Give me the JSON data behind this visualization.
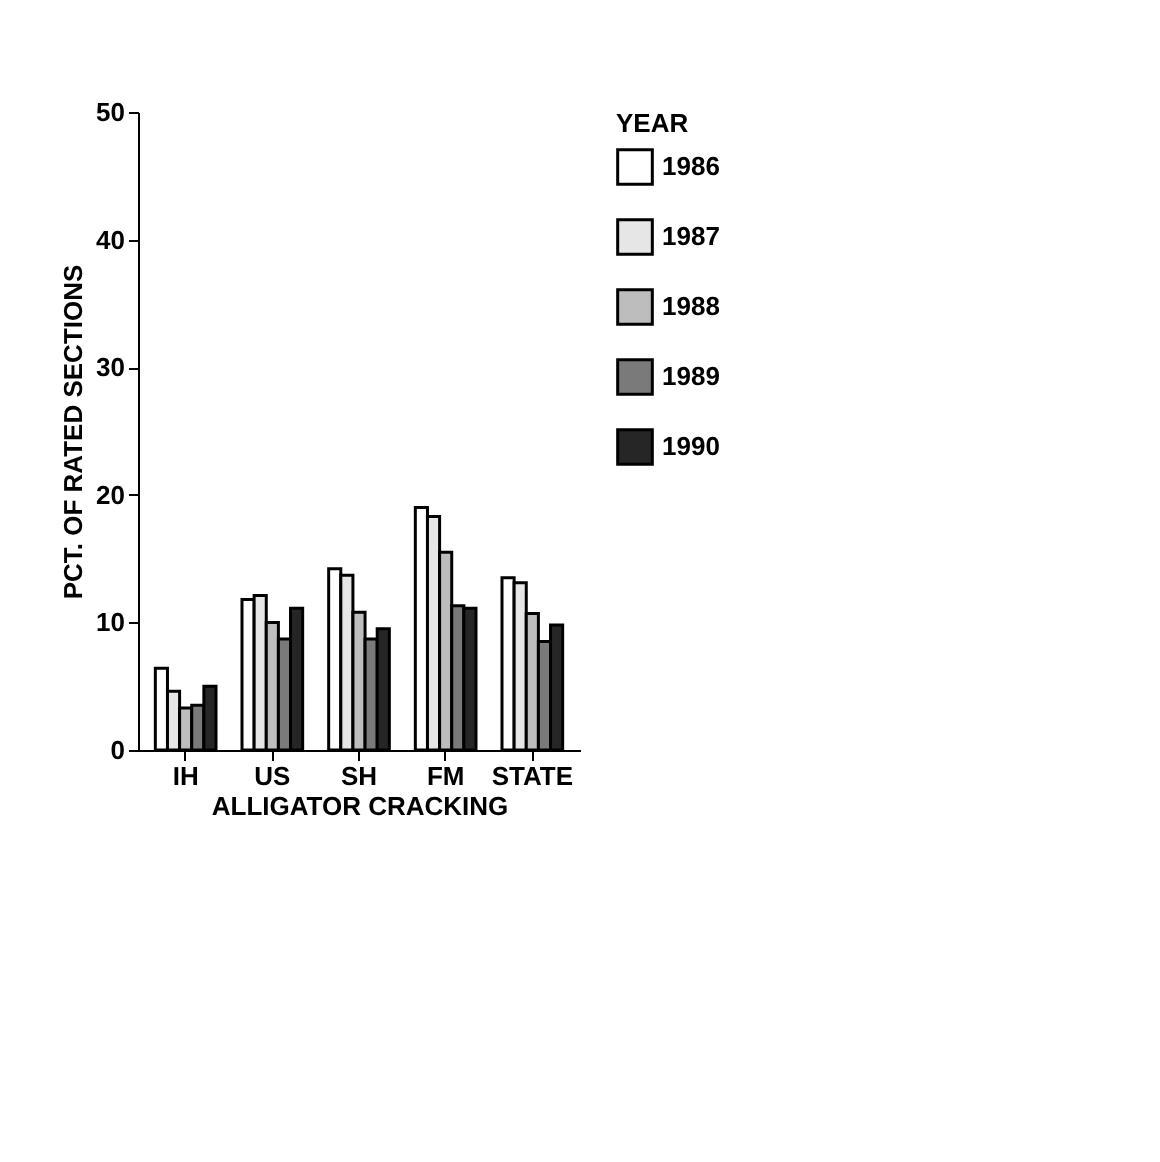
{
  "chart_data": {
    "type": "bar",
    "xlabel": "ALLIGATOR CRACKING",
    "ylabel": "PCT. OF RATED SECTIONS",
    "legend_title": "YEAR",
    "categories": [
      "IH",
      "US",
      "SH",
      "FM",
      "STATE"
    ],
    "series": [
      {
        "name": "1986",
        "color": "#ffffff",
        "values": [
          6.4,
          11.8,
          14.2,
          19.0,
          13.5
        ]
      },
      {
        "name": "1987",
        "color": "#e6e6e6",
        "values": [
          4.6,
          12.1,
          13.7,
          18.3,
          13.1
        ]
      },
      {
        "name": "1988",
        "color": "#bdbdbd",
        "values": [
          3.3,
          10.0,
          10.8,
          15.5,
          10.7
        ]
      },
      {
        "name": "1989",
        "color": "#7a7a7a",
        "values": [
          3.5,
          8.7,
          8.7,
          11.3,
          8.5
        ]
      },
      {
        "name": "1990",
        "color": "#262626",
        "values": [
          5.0,
          11.1,
          9.5,
          11.1,
          9.8
        ]
      }
    ],
    "ylim": [
      0,
      50
    ],
    "yticks": [
      0,
      10,
      20,
      30,
      40,
      50
    ],
    "grid": false,
    "legend": "top right"
  }
}
